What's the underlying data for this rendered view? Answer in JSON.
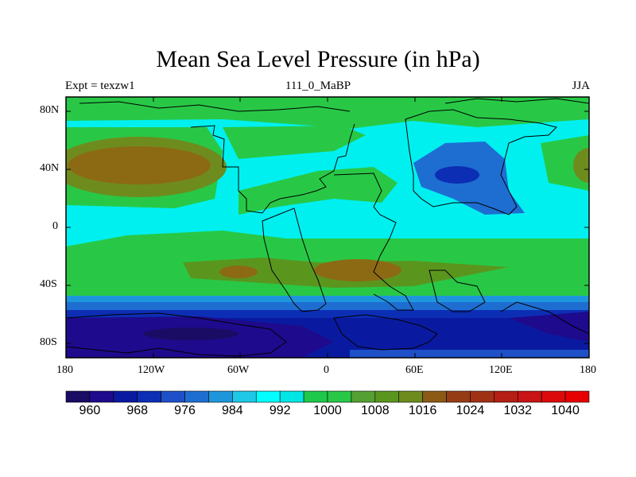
{
  "title": "Mean Sea Level Pressure (in hPa)",
  "experiment": "Expt = texzw1",
  "period_label": "111_0_MaBP",
  "season": "JJA",
  "lat_ticks": [
    "80N",
    "40N",
    "0",
    "40S",
    "80S"
  ],
  "lon_ticks": [
    "180",
    "120W",
    "60W",
    "0",
    "60E",
    "120E",
    "180"
  ],
  "colorbar": {
    "labels": [
      "960",
      "968",
      "976",
      "984",
      "992",
      "1000",
      "1008",
      "1016",
      "1024",
      "1032",
      "1040"
    ],
    "colors": [
      "#1a0c64",
      "#1e0a8c",
      "#0a1aa0",
      "#0c2eb4",
      "#1e50c8",
      "#1e6ed2",
      "#1e96dc",
      "#1ec8e6",
      "#00ffff",
      "#00e6e6",
      "#1ec84b",
      "#28c846",
      "#55a032",
      "#5a961e",
      "#6e8c1e",
      "#8c5a14",
      "#963c14",
      "#a03214",
      "#b41e14",
      "#c81414",
      "#dc0a0a",
      "#e60000"
    ]
  },
  "chart_data": {
    "type": "contour-map",
    "variable": "Mean Sea Level Pressure",
    "units": "hPa",
    "contour_levels": [
      960,
      964,
      968,
      972,
      976,
      980,
      984,
      988,
      992,
      996,
      1000,
      1004,
      1008,
      1012,
      1016,
      1020,
      1024,
      1028,
      1032,
      1036,
      1040
    ],
    "x_range": [
      -180,
      180
    ],
    "y_range": [
      -90,
      90
    ]
  }
}
